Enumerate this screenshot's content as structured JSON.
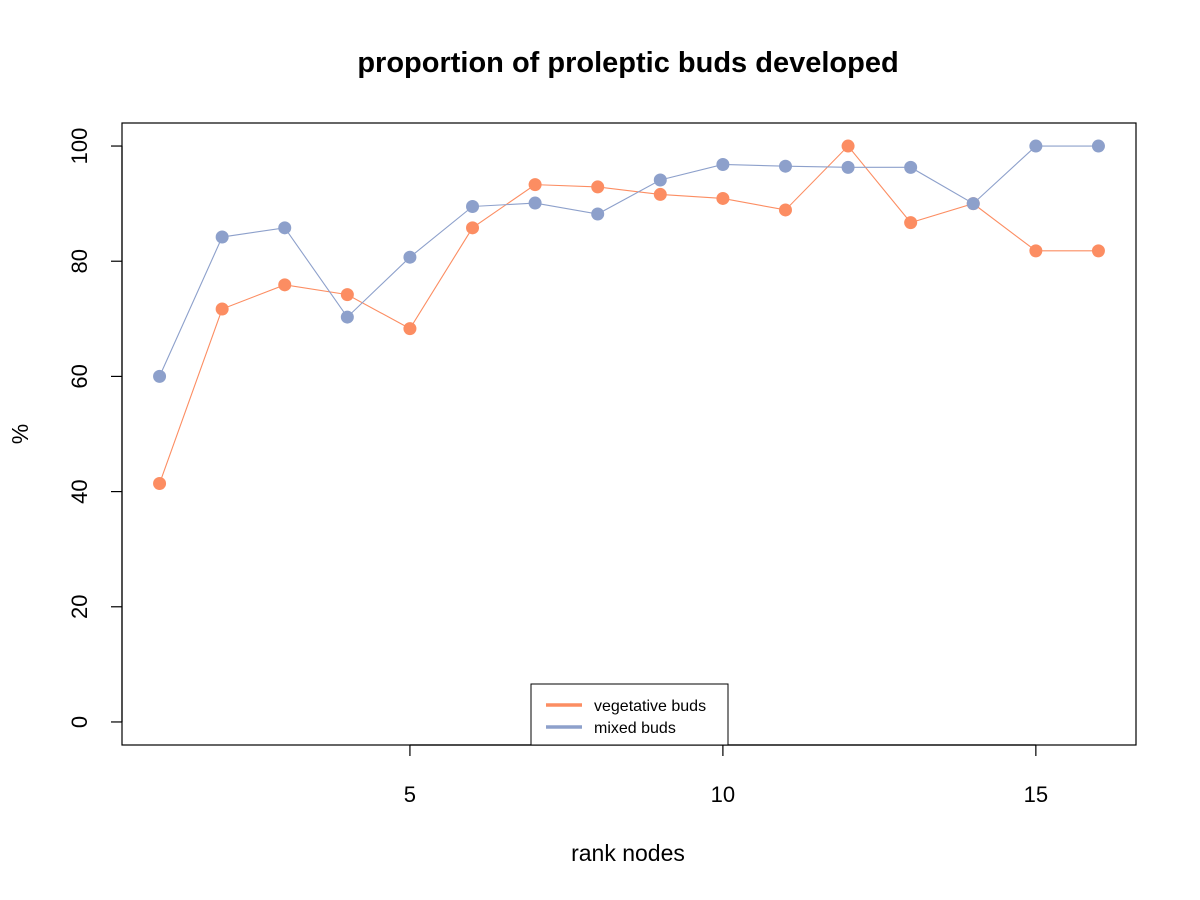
{
  "chart_data": {
    "type": "line",
    "title": "proportion of proleptic buds developed",
    "xlabel": "rank nodes",
    "ylabel": "%",
    "x": [
      1,
      2,
      3,
      4,
      5,
      6,
      7,
      8,
      9,
      10,
      11,
      12,
      13,
      14,
      15,
      16
    ],
    "xlim": [
      0.4,
      16.6
    ],
    "ylim": [
      -4,
      104
    ],
    "xticks": [
      5,
      10,
      15
    ],
    "yticks": [
      0,
      20,
      40,
      60,
      80,
      100
    ],
    "grid": false,
    "legend_position": "bottom-center",
    "series": [
      {
        "name": "vegetative buds",
        "color": "#FC8D62",
        "values": [
          41.4,
          71.7,
          75.9,
          74.2,
          68.3,
          85.8,
          93.3,
          92.9,
          91.6,
          90.9,
          88.9,
          100,
          86.7,
          90.0,
          81.8,
          81.8
        ]
      },
      {
        "name": "mixed buds",
        "color": "#8DA0CB",
        "values": [
          60.0,
          84.2,
          85.8,
          70.3,
          80.7,
          89.5,
          90.1,
          88.2,
          94.1,
          96.8,
          96.5,
          96.3,
          96.3,
          90.0,
          100,
          100
        ]
      }
    ]
  }
}
